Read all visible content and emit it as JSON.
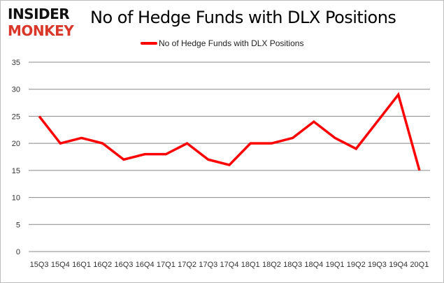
{
  "logo": {
    "line1": "INSIDER",
    "line2": "MONKEY",
    "colors": {
      "line1": "#111111",
      "line2": "#d9372a"
    }
  },
  "chart_data": {
    "type": "line",
    "title": "No of Hedge Funds with DLX Positions",
    "xlabel": "",
    "ylabel": "",
    "categories": [
      "15Q3",
      "15Q4",
      "16Q1",
      "16Q2",
      "16Q3",
      "16Q4",
      "17Q1",
      "17Q2",
      "17Q3",
      "17Q4",
      "18Q1",
      "18Q2",
      "18Q3",
      "18Q4",
      "19Q1",
      "19Q2",
      "19Q3",
      "19Q4",
      "20Q1"
    ],
    "series": [
      {
        "name": "No of Hedge Funds with DLX Positions",
        "color": "#ff0000",
        "values": [
          25,
          20,
          21,
          20,
          17,
          18,
          18,
          20,
          17,
          16,
          20,
          20,
          21,
          24,
          21,
          19,
          24,
          29,
          15
        ]
      }
    ],
    "ylim": [
      0,
      35
    ],
    "yticks": [
      0,
      5,
      10,
      15,
      20,
      25,
      30,
      35
    ],
    "grid": true,
    "legend_position": "top"
  }
}
